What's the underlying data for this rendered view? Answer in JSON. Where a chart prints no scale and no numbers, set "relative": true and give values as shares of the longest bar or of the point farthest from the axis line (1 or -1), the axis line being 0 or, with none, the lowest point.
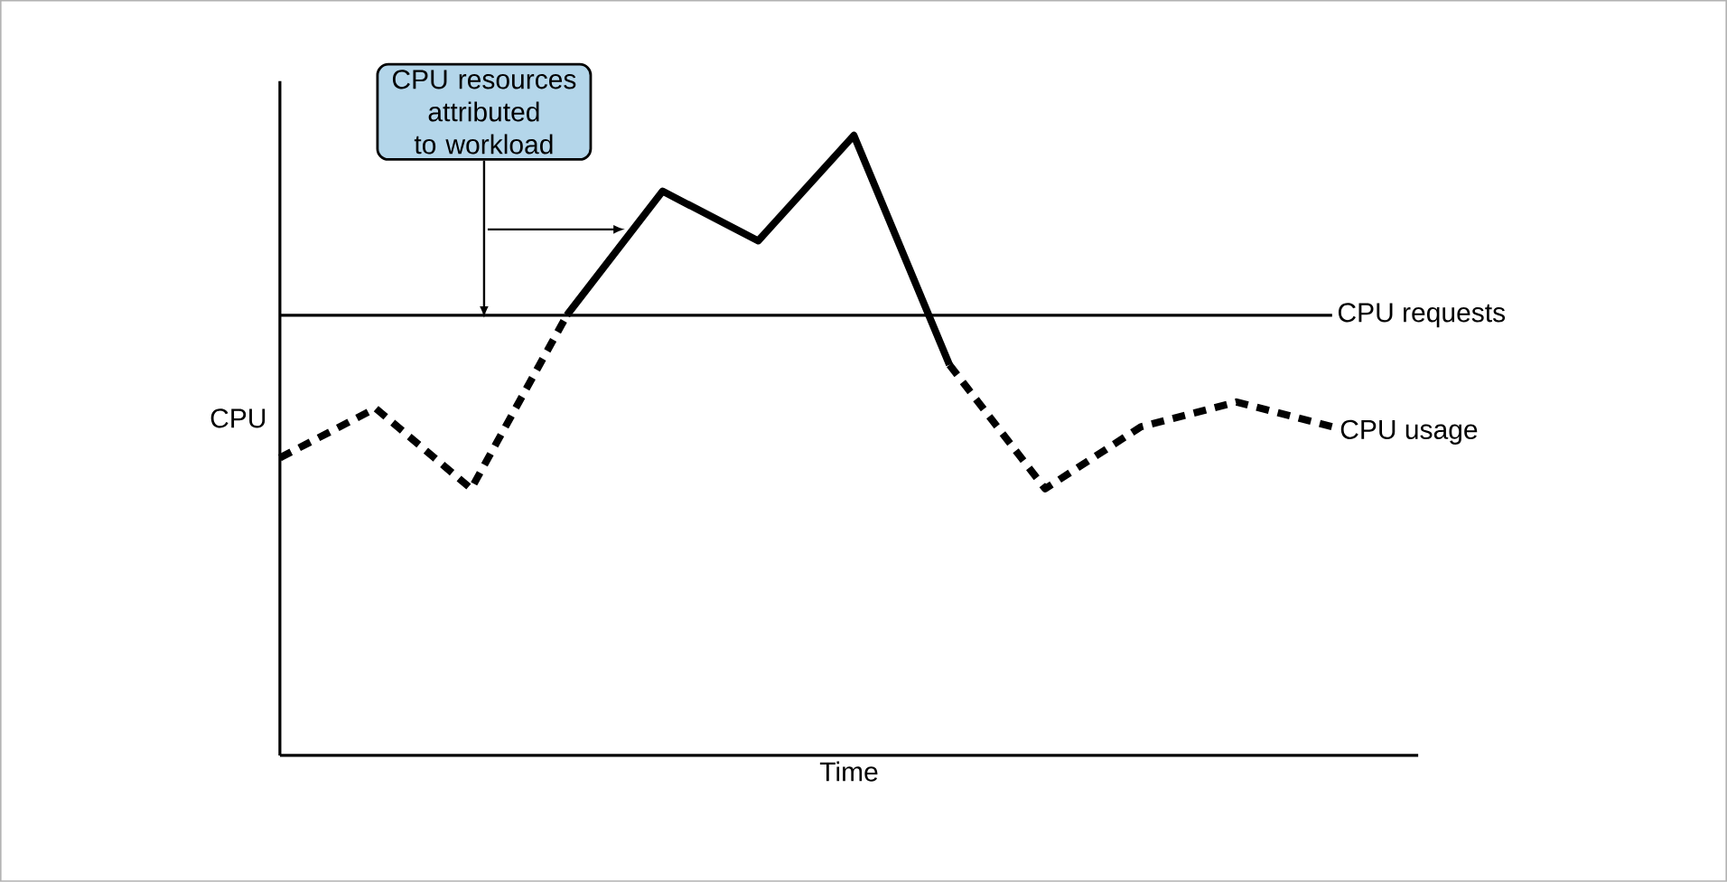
{
  "chart_data": {
    "type": "line",
    "relative": true,
    "xlabel": "Time",
    "ylabel": "CPU",
    "annotations": [
      "CPU resources attributed to workload"
    ],
    "categories": [
      null,
      null,
      null,
      null,
      null,
      null,
      null,
      null,
      null,
      null,
      null,
      null
    ],
    "series": [
      {
        "name": "CPU usage",
        "color": "#000000",
        "line_style": "dashed",
        "values": [
          0.48,
          0.56,
          0.43,
          0.71,
          null,
          null,
          null,
          0.63,
          0.43,
          0.53,
          0.57,
          0.53
        ]
      },
      {
        "color": "#000000",
        "line_style": "solid",
        "values": [
          null,
          null,
          null,
          0.71,
          0.91,
          0.83,
          1,
          0.63,
          null,
          null,
          null,
          null
        ]
      }
    ],
    "ref_lines": [
      {
        "axis": "y",
        "value": 0.71,
        "label": "CPU requests",
        "color": "#000000",
        "line_style": "solid"
      }
    ],
    "marker": "none"
  }
}
